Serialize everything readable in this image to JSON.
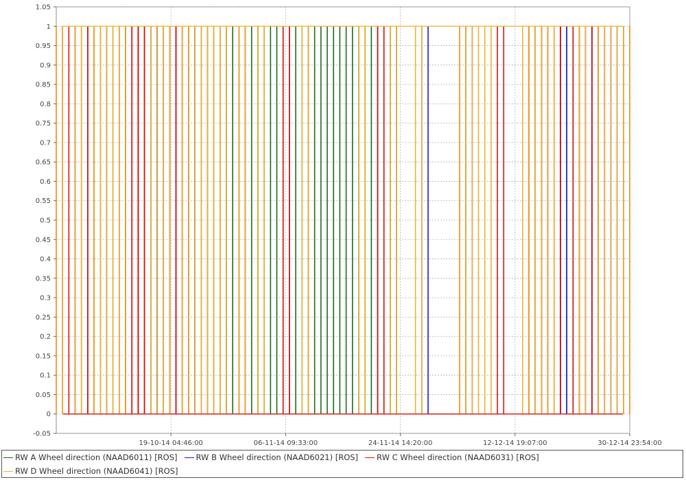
{
  "chart_data": {
    "type": "line",
    "title": "",
    "xlabel": "",
    "ylabel": "",
    "ylim": [
      -0.05,
      1.05
    ],
    "yticks": [
      "-0.05",
      "0",
      "0.05",
      "0.1",
      "0.15",
      "0.2",
      "0.25",
      "0.3",
      "0.35",
      "0.4",
      "0.45",
      "0.5",
      "0.55",
      "0.6",
      "0.65",
      "0.7",
      "0.75",
      "0.8",
      "0.85",
      "0.9",
      "0.95",
      "1",
      "1.05"
    ],
    "xlim": [
      "01-10-14 00:00:00",
      "31-12-14 00:00:00"
    ],
    "xticks": [
      "19-10-14 04:46:00",
      "06-11-14 09:33:00",
      "24-11-14 14:20:00",
      "12-12-14 19:07:00",
      "30-12-14 23:54:00"
    ],
    "grid": true,
    "legend_position": "bottom",
    "series": [
      {
        "name": "RW A Wheel direction (NAAD6011) [ROS]",
        "color": "#1a6b1a",
        "transitions": [
          "02-10-14",
          "04-10-14",
          "06-10-14",
          "07-10-14",
          "08-10-14",
          "09-10-14",
          "10-10-14",
          "12-10-14",
          "13-10-14",
          "14-10-14",
          "14-10-14",
          "15-10-14",
          "15-10-14",
          "16-10-14",
          "16-10-14",
          "17-10-14",
          "18-10-14",
          "18-10-14",
          "19-10-14",
          "20-10-14",
          "21-10-14",
          "22-10-14",
          "23-10-14",
          "24-10-14",
          "25-10-14",
          "26-10-14",
          "26-10-14",
          "27-10-14",
          "28-10-14",
          "29-10-14",
          "30-10-14",
          "31-10-14",
          "01-11-14",
          "02-11-14",
          "03-11-14",
          "04-11-14",
          "05-11-14",
          "06-11-14",
          "07-11-14",
          "08-11-14",
          "09-11-14",
          "10-11-14",
          "11-11-14",
          "12-11-14",
          "13-11-14",
          "14-11-14",
          "15-11-14",
          "16-11-14",
          "17-11-14",
          "18-11-14",
          "19-11-14",
          "20-11-14",
          "21-11-14",
          "22-11-14",
          "23-11-14",
          "24-11-14",
          "15-12-14",
          "16-12-14",
          "18-12-14",
          "20-12-14",
          "21-12-14",
          "22-12-14",
          "23-12-14",
          "24-12-14",
          "25-12-14",
          "26-12-14"
        ]
      },
      {
        "name": "RW B Wheel direction (NAAD6021) [ROS]",
        "color": "#1a1acc",
        "transitions": [
          "16-10-14",
          "17-10-14",
          "23-10-14",
          "24-10-14",
          "28-11-14",
          "29-11-14",
          "05-12-14",
          "06-12-14",
          "16-12-14",
          "17-12-14",
          "20-12-14",
          "21-12-14",
          "24-12-14",
          "25-12-14",
          "27-12-14",
          "28-12-14",
          "29-12-14",
          "30-12-14"
        ]
      },
      {
        "name": "RW C Wheel direction (NAAD6031) [ROS]",
        "color": "#e01010",
        "transitions": [
          "01-10-14",
          "02-10-14",
          "03-10-14",
          "04-10-14",
          "05-10-14",
          "06-10-14",
          "07-10-14",
          "08-10-14",
          "11-10-14",
          "12-10-14",
          "13-10-14",
          "13-10-14",
          "14-10-14",
          "14-10-14",
          "15-10-14",
          "19-10-14",
          "19-10-14",
          "20-10-14",
          "20-10-14",
          "21-10-14",
          "21-10-14",
          "22-10-14",
          "30-10-14",
          "31-10-14",
          "06-11-14",
          "07-11-14",
          "21-11-14",
          "22-11-14",
          "04-12-14",
          "05-12-14",
          "10-12-14",
          "11-12-14",
          "15-12-14",
          "16-12-14",
          "17-12-14",
          "18-12-14",
          "19-12-14",
          "20-12-14",
          "22-12-14",
          "23-12-14",
          "24-12-14",
          "25-12-14",
          "26-12-14",
          "27-12-14",
          "30-12-14",
          "31-12-14"
        ]
      },
      {
        "name": "RW D Wheel direction (NAAD6041) [ROS]",
        "color": "#f0b030",
        "transitions": [
          "01-10-14",
          "02-10-14",
          "04-10-14",
          "05-10-14",
          "07-10-14",
          "08-10-14",
          "09-10-14",
          "10-10-14",
          "11-10-14",
          "12-10-14",
          "16-10-14",
          "17-10-14",
          "18-10-14",
          "19-10-14",
          "21-10-14",
          "22-10-14",
          "23-10-14",
          "24-10-14",
          "25-10-14",
          "26-10-14",
          "27-10-14",
          "28-10-14",
          "30-10-14",
          "31-10-14",
          "02-11-14",
          "03-11-14",
          "09-11-14",
          "10-11-14",
          "18-11-14",
          "19-11-14",
          "23-11-14",
          "24-11-14",
          "27-11-14",
          "28-11-14",
          "04-12-14",
          "05-12-14",
          "06-12-14",
          "07-12-14",
          "08-12-14",
          "09-12-14",
          "14-12-14",
          "15-12-14",
          "16-12-14",
          "17-12-14",
          "18-12-14",
          "19-12-14",
          "23-12-14",
          "24-12-14",
          "26-12-14",
          "27-12-14",
          "28-12-14",
          "29-12-14",
          "30-12-14",
          "31-12-14"
        ]
      }
    ]
  }
}
